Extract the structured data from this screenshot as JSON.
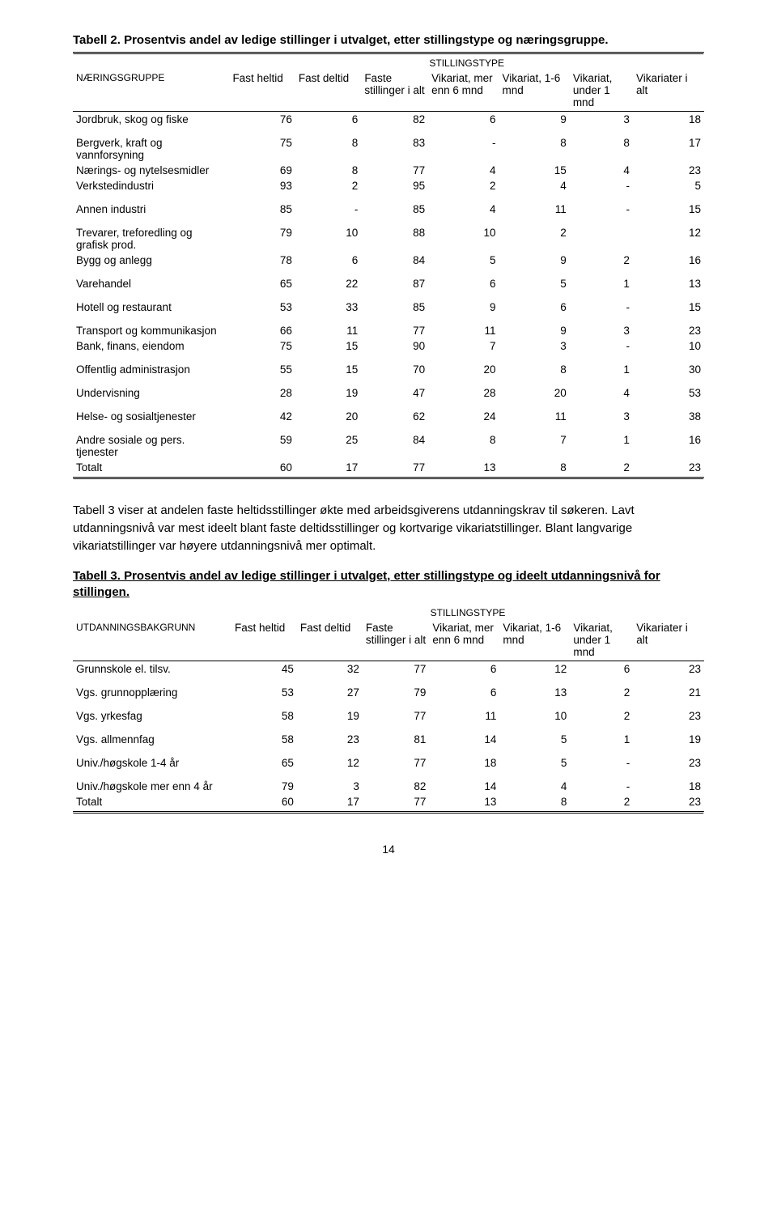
{
  "table1": {
    "title": "Tabell 2. Prosentvis andel av ledige stillinger i utvalget, etter stillingstype og næringsgruppe.",
    "supertitle": "STILLINGSTYPE",
    "col0_header": "NÆRINGSGRUPPE",
    "headers": [
      "Fast heltid",
      "Fast deltid",
      "Faste stillinger i alt",
      "Vikariat, mer enn 6 mnd",
      "Vikariat, 1-6 mnd",
      "Vikariat, under 1 mnd",
      "Vikariater i alt"
    ],
    "rows": [
      {
        "label": "Jordbruk, skog og fiske",
        "v": [
          "76",
          "6",
          "82",
          "6",
          "9",
          "3",
          "18"
        ],
        "gap": false
      },
      {
        "label": "Bergverk, kraft og vannforsyning",
        "v": [
          "75",
          "8",
          "83",
          "-",
          "8",
          "8",
          "17"
        ],
        "gap": true
      },
      {
        "label": "Nærings- og nytelsesmidler",
        "v": [
          "69",
          "8",
          "77",
          "4",
          "15",
          "4",
          "23"
        ],
        "gap": false
      },
      {
        "label": "Verkstedindustri",
        "v": [
          "93",
          "2",
          "95",
          "2",
          "4",
          "-",
          "5"
        ],
        "gap": false
      },
      {
        "label": "Annen industri",
        "v": [
          "85",
          "-",
          "85",
          "4",
          "11",
          "-",
          "15"
        ],
        "gap": true
      },
      {
        "label": "Trevarer, treforedling og grafisk prod.",
        "v": [
          "79",
          "10",
          "88",
          "10",
          "2",
          "",
          "12"
        ],
        "gap": true
      },
      {
        "label": "Bygg og anlegg",
        "v": [
          "78",
          "6",
          "84",
          "5",
          "9",
          "2",
          "16"
        ],
        "gap": false
      },
      {
        "label": "Varehandel",
        "v": [
          "65",
          "22",
          "87",
          "6",
          "5",
          "1",
          "13"
        ],
        "gap": true
      },
      {
        "label": "Hotell og restaurant",
        "v": [
          "53",
          "33",
          "85",
          "9",
          "6",
          "-",
          "15"
        ],
        "gap": true
      },
      {
        "label": "Transport og kommunikasjon",
        "v": [
          "66",
          "11",
          "77",
          "11",
          "9",
          "3",
          "23"
        ],
        "gap": true
      },
      {
        "label": "Bank, finans, eiendom",
        "v": [
          "75",
          "15",
          "90",
          "7",
          "3",
          "-",
          "10"
        ],
        "gap": false
      },
      {
        "label": "Offentlig administrasjon",
        "v": [
          "55",
          "15",
          "70",
          "20",
          "8",
          "1",
          "30"
        ],
        "gap": true
      },
      {
        "label": "Undervisning",
        "v": [
          "28",
          "19",
          "47",
          "28",
          "20",
          "4",
          "53"
        ],
        "gap": true
      },
      {
        "label": "Helse- og sosialtjenester",
        "v": [
          "42",
          "20",
          "62",
          "24",
          "11",
          "3",
          "38"
        ],
        "gap": true
      },
      {
        "label": "Andre sosiale og pers. tjenester",
        "v": [
          "59",
          "25",
          "84",
          "8",
          "7",
          "1",
          "16"
        ],
        "gap": true
      },
      {
        "label": "Totalt",
        "v": [
          "60",
          "17",
          "77",
          "13",
          "8",
          "2",
          "23"
        ],
        "gap": false
      }
    ]
  },
  "paragraph": "Tabell 3 viser at andelen faste heltidsstillinger økte med arbeidsgiverens utdanningskrav til søkeren. Lavt utdanningsnivå var mest ideelt blant faste deltidsstillinger og kortvarige vikariatstillinger. Blant langvarige vikariatstillinger var høyere utdanningsnivå mer optimalt.",
  "table2": {
    "title": "Tabell 3. Prosentvis andel av ledige stillinger i utvalget, etter stillingstype og ideelt utdanningsnivå for stillingen.",
    "supertitle": "STILLINGSTYPE",
    "col0_header": "UTDANNINGSBAKGRUNN",
    "headers": [
      "Fast heltid",
      "Fast deltid",
      "Faste stillinger i alt",
      "Vikariat, mer enn 6 mnd",
      "Vikariat, 1-6 mnd",
      "Vikariat, under 1 mnd",
      "Vikariater i alt"
    ],
    "rows": [
      {
        "label": "Grunnskole el. tilsv.",
        "v": [
          "45",
          "32",
          "77",
          "6",
          "12",
          "6",
          "23"
        ],
        "gap": false
      },
      {
        "label": "Vgs. grunnopplæring",
        "v": [
          "53",
          "27",
          "79",
          "6",
          "13",
          "2",
          "21"
        ],
        "gap": true
      },
      {
        "label": "Vgs. yrkesfag",
        "v": [
          "58",
          "19",
          "77",
          "11",
          "10",
          "2",
          "23"
        ],
        "gap": true
      },
      {
        "label": "Vgs. allmennfag",
        "v": [
          "58",
          "23",
          "81",
          "14",
          "5",
          "1",
          "19"
        ],
        "gap": true
      },
      {
        "label": "Univ./høgskole 1-4 år",
        "v": [
          "65",
          "12",
          "77",
          "18",
          "5",
          "-",
          "23"
        ],
        "gap": true
      },
      {
        "label": "Univ./høgskole mer enn 4 år",
        "v": [
          "79",
          "3",
          "82",
          "14",
          "4",
          "-",
          "18"
        ],
        "gap": true
      },
      {
        "label": "Totalt",
        "v": [
          "60",
          "17",
          "77",
          "13",
          "8",
          "2",
          "23"
        ],
        "gap": false
      }
    ]
  },
  "pagenum": "14"
}
